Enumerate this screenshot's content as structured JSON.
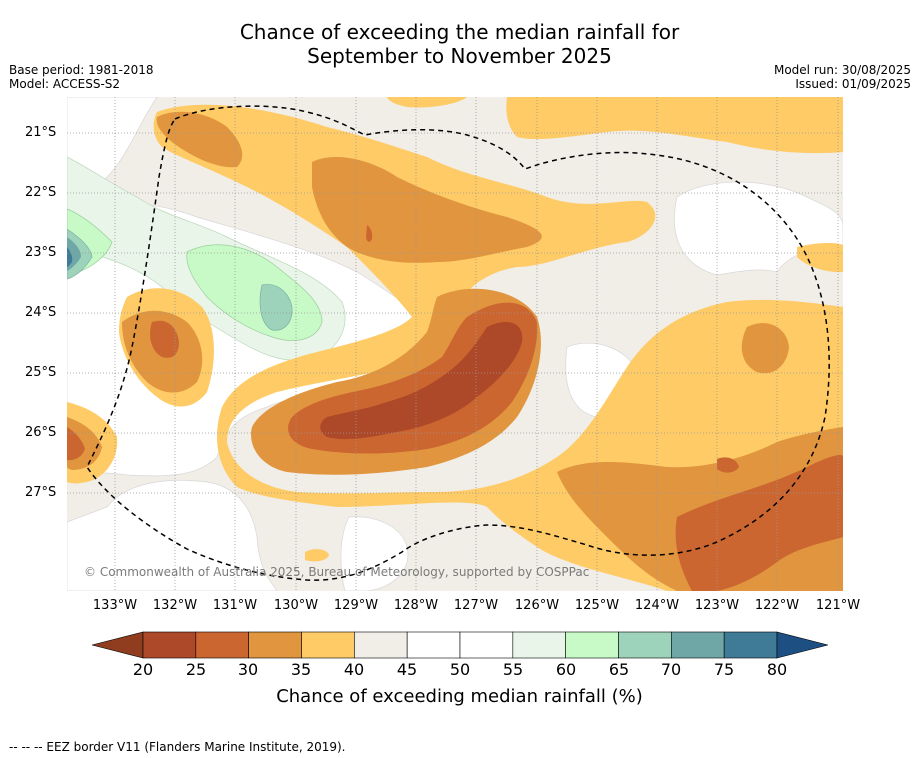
{
  "title": {
    "line1": "Chance of exceeding the median rainfall for",
    "line2": "September to November 2025"
  },
  "meta_left": {
    "base_period": "Base period: 1981-2018",
    "model": "Model: ACCESS-S2"
  },
  "meta_right": {
    "model_run": "Model run: 30/08/2025",
    "issued": "Issued: 01/09/2025"
  },
  "map": {
    "lat_labels": [
      "21°S",
      "22°S",
      "23°S",
      "24°S",
      "25°S",
      "26°S",
      "27°S"
    ],
    "lon_labels": [
      "133°W",
      "132°W",
      "131°W",
      "130°W",
      "129°W",
      "128°W",
      "127°W",
      "126°W",
      "125°W",
      "124°W",
      "123°W",
      "122°W",
      "121°W"
    ],
    "copyright": "© Commonwealth of Australia 2025, Bureau of Meteorology, supported by COSPPac"
  },
  "colorbar": {
    "tick_labels": [
      "20",
      "25",
      "30",
      "35",
      "40",
      "45",
      "50",
      "55",
      "60",
      "65",
      "70",
      "75",
      "80"
    ],
    "title": "Chance of exceeding median rainfall (%)",
    "colors": {
      "under": "#8f3c1f",
      "bins": [
        "#ad4928",
        "#cb6630",
        "#e0953e",
        "#fecb66",
        "#f1ede7",
        "#ffffff",
        "#ffffff",
        "#e8f5e8",
        "#c8fac8",
        "#9dd2bb",
        "#6fa7a7",
        "#3f7a97"
      ],
      "over": "#1d4f82"
    }
  },
  "legend_note": "--  --  -- EEZ border V11 (Flanders Marine Institute, 2019)."
}
